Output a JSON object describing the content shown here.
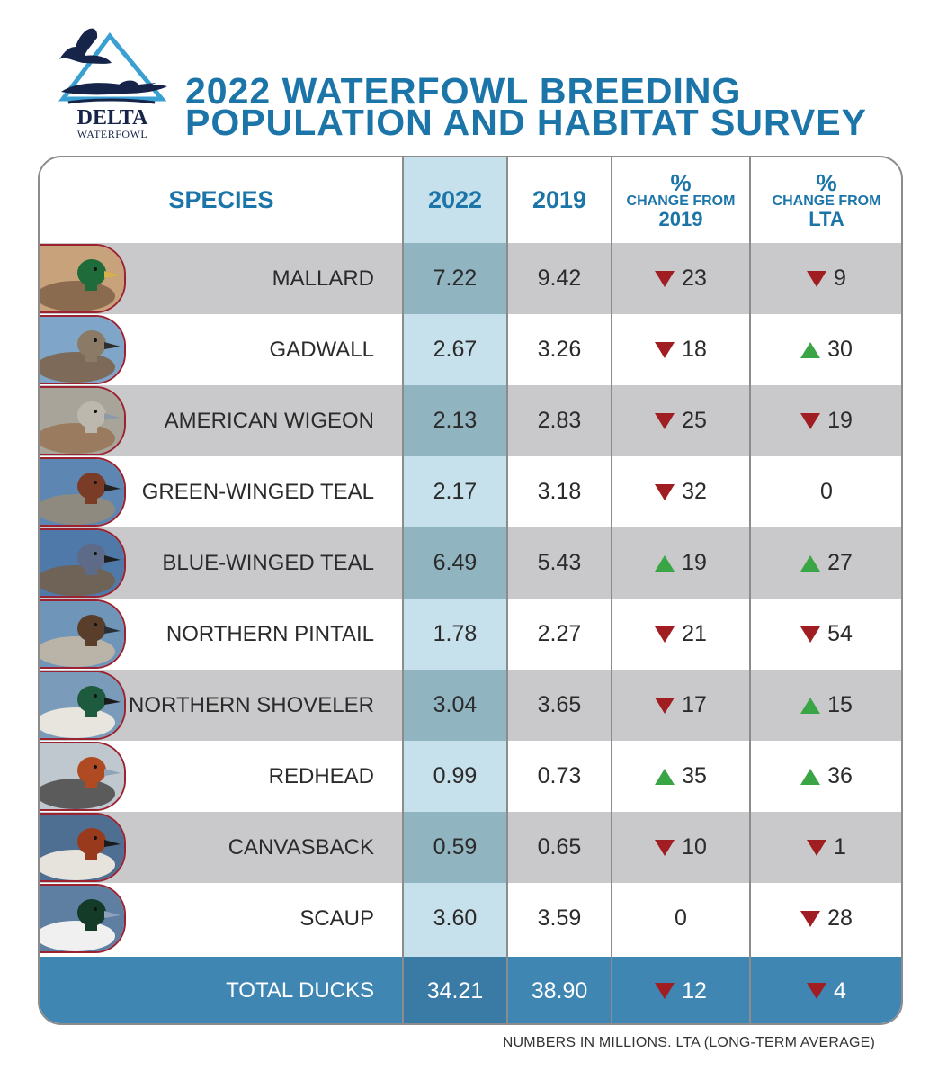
{
  "logo": {
    "word": "DELTA",
    "subword": "WATERFOWL"
  },
  "title": {
    "line1": "2022 WATERFOWL BREEDING",
    "line2": "POPULATION AND HABITAT SURVEY"
  },
  "headers": {
    "species": "SPECIES",
    "y2022": "2022",
    "y2019": "2019",
    "chg2019_pct": "%",
    "chg2019_sub": "CHANGE FROM",
    "chg2019_ref": "2019",
    "chglta_pct": "%",
    "chglta_sub": "CHANGE FROM",
    "chglta_ref": "LTA"
  },
  "colors": {
    "accent": "#1c75a8",
    "down": "#a01e22",
    "up": "#3aa545",
    "total_bar": "#3f86b3"
  },
  "chart_data": {
    "type": "table",
    "title": "2022 WATERFOWL BREEDING POPULATION AND HABITAT SURVEY",
    "columns": [
      "SPECIES",
      "2022",
      "2019",
      "% CHANGE FROM 2019",
      "% CHANGE FROM LTA"
    ],
    "rows": [
      {
        "species": "MALLARD",
        "v2022": "7.22",
        "v2019": "9.42",
        "chg2019": "23",
        "dir2019": "down",
        "chglta": "9",
        "dirlta": "down"
      },
      {
        "species": "GADWALL",
        "v2022": "2.67",
        "v2019": "3.26",
        "chg2019": "18",
        "dir2019": "down",
        "chglta": "30",
        "dirlta": "up"
      },
      {
        "species": "AMERICAN WIGEON",
        "v2022": "2.13",
        "v2019": "2.83",
        "chg2019": "25",
        "dir2019": "down",
        "chglta": "19",
        "dirlta": "down"
      },
      {
        "species": "GREEN-WINGED TEAL",
        "v2022": "2.17",
        "v2019": "3.18",
        "chg2019": "32",
        "dir2019": "down",
        "chglta": "0",
        "dirlta": "none"
      },
      {
        "species": "BLUE-WINGED TEAL",
        "v2022": "6.49",
        "v2019": "5.43",
        "chg2019": "19",
        "dir2019": "up",
        "chglta": "27",
        "dirlta": "up"
      },
      {
        "species": "NORTHERN PINTAIL",
        "v2022": "1.78",
        "v2019": "2.27",
        "chg2019": "21",
        "dir2019": "down",
        "chglta": "54",
        "dirlta": "down"
      },
      {
        "species": "NORTHERN SHOVELER",
        "v2022": "3.04",
        "v2019": "3.65",
        "chg2019": "17",
        "dir2019": "down",
        "chglta": "15",
        "dirlta": "up"
      },
      {
        "species": "REDHEAD",
        "v2022": "0.99",
        "v2019": "0.73",
        "chg2019": "35",
        "dir2019": "up",
        "chglta": "36",
        "dirlta": "up"
      },
      {
        "species": "CANVASBACK",
        "v2022": "0.59",
        "v2019": "0.65",
        "chg2019": "10",
        "dir2019": "down",
        "chglta": "1",
        "dirlta": "down"
      },
      {
        "species": "SCAUP",
        "v2022": "3.60",
        "v2019": "3.59",
        "chg2019": "0",
        "dir2019": "none",
        "chglta": "28",
        "dirlta": "down"
      }
    ],
    "total": {
      "species": "TOTAL DUCKS",
      "v2022": "34.21",
      "v2019": "38.90",
      "chg2019": "12",
      "dir2019": "down",
      "chglta": "4",
      "dirlta": "down"
    }
  },
  "thumbs": [
    {
      "water": "#c8a27a",
      "body": "#8a6b4f",
      "head": "#1f6b3a",
      "bill": "#d6b04a"
    },
    {
      "water": "#7fa6c9",
      "body": "#7d6a58",
      "head": "#8a7a66",
      "bill": "#2e2e2e"
    },
    {
      "water": "#a9a49a",
      "body": "#9b7b5f",
      "head": "#bdb8ae",
      "bill": "#8d9aa8"
    },
    {
      "water": "#5d86b2",
      "body": "#8e8a80",
      "head": "#7a3c26",
      "bill": "#222222"
    },
    {
      "water": "#4e79a8",
      "body": "#6f6256",
      "head": "#5d6a88",
      "bill": "#1e1e1e"
    },
    {
      "water": "#6f95b8",
      "body": "#b9b3a8",
      "head": "#5a3e2c",
      "bill": "#2b2f38"
    },
    {
      "water": "#7a9cba",
      "body": "#e8e4de",
      "head": "#1e5b3e",
      "bill": "#1b1b1b"
    },
    {
      "water": "#bfc7cf",
      "body": "#5b5b5b",
      "head": "#b04a22",
      "bill": "#8fa4b8"
    },
    {
      "water": "#4e6e92",
      "body": "#e6e2dc",
      "head": "#9a3a1c",
      "bill": "#1a1a1a"
    },
    {
      "water": "#5e7fa2",
      "body": "#f0f0f0",
      "head": "#143a28",
      "bill": "#8ea3bb"
    }
  ],
  "footnote": "NUMBERS IN MILLIONS. LTA (LONG-TERM AVERAGE)"
}
